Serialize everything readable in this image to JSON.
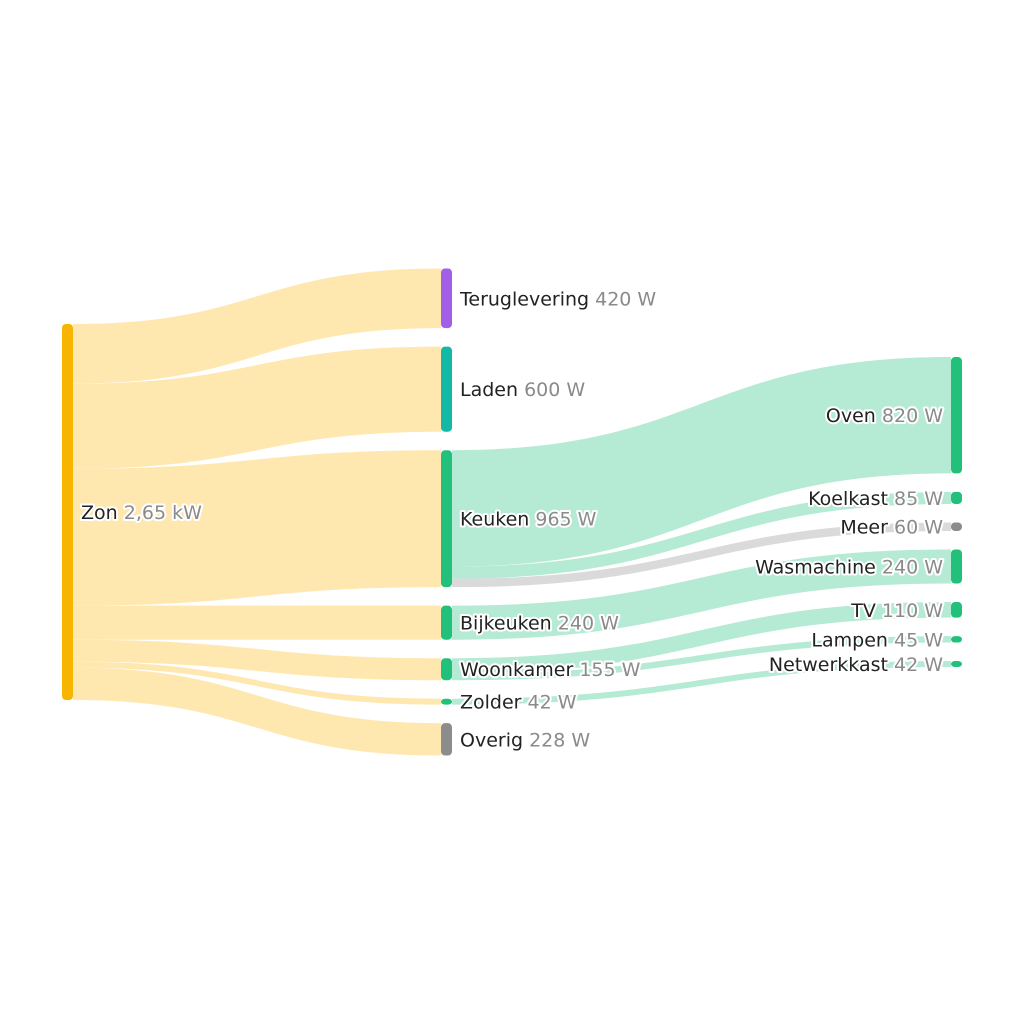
{
  "chart_data": {
    "type": "sankey",
    "nodes": [
      {
        "name": "Zon",
        "value": 2650,
        "value_label": "2,65 kW",
        "color": "#f7b500"
      },
      {
        "name": "Teruglevering",
        "value": 420,
        "value_label": "420 W",
        "color": "#a35ee8"
      },
      {
        "name": "Laden",
        "value": 600,
        "value_label": "600 W",
        "color": "#14b8a6"
      },
      {
        "name": "Keuken",
        "value": 965,
        "value_label": "965 W",
        "color": "#22c07a"
      },
      {
        "name": "Bijkeuken",
        "value": 240,
        "value_label": "240 W",
        "color": "#22c07a"
      },
      {
        "name": "Woonkamer",
        "value": 155,
        "value_label": "155 W",
        "color": "#22c07a"
      },
      {
        "name": "Zolder",
        "value": 42,
        "value_label": "42 W",
        "color": "#22c07a"
      },
      {
        "name": "Overig",
        "value": 228,
        "value_label": "228 W",
        "color": "#8c8c8c"
      },
      {
        "name": "Oven",
        "value": 820,
        "value_label": "820 W",
        "color": "#22c07a"
      },
      {
        "name": "Koelkast",
        "value": 85,
        "value_label": "85 W",
        "color": "#22c07a"
      },
      {
        "name": "Meer",
        "value": 60,
        "value_label": "60 W",
        "color": "#8c8c8c"
      },
      {
        "name": "Wasmachine",
        "value": 240,
        "value_label": "240 W",
        "color": "#22c07a"
      },
      {
        "name": "TV",
        "value": 110,
        "value_label": "110 W",
        "color": "#22c07a"
      },
      {
        "name": "Lampen",
        "value": 45,
        "value_label": "45 W",
        "color": "#22c07a"
      },
      {
        "name": "Netwerkkast",
        "value": 42,
        "value_label": "42 W",
        "color": "#22c07a"
      }
    ],
    "links": [
      {
        "source": 0,
        "target": 1,
        "value": 420,
        "color": "#ffe7b0"
      },
      {
        "source": 0,
        "target": 2,
        "value": 600,
        "color": "#ffe7b0"
      },
      {
        "source": 0,
        "target": 3,
        "value": 965,
        "color": "#ffe7b0"
      },
      {
        "source": 0,
        "target": 4,
        "value": 240,
        "color": "#ffe7b0"
      },
      {
        "source": 0,
        "target": 5,
        "value": 155,
        "color": "#ffe7b0"
      },
      {
        "source": 0,
        "target": 6,
        "value": 42,
        "color": "#ffe7b0"
      },
      {
        "source": 0,
        "target": 7,
        "value": 228,
        "color": "#ffe7b0"
      },
      {
        "source": 3,
        "target": 8,
        "value": 820,
        "color": "#b5ead4"
      },
      {
        "source": 3,
        "target": 9,
        "value": 85,
        "color": "#b5ead4"
      },
      {
        "source": 3,
        "target": 10,
        "value": 60,
        "color": "#dadada"
      },
      {
        "source": 4,
        "target": 11,
        "value": 240,
        "color": "#b5ead4"
      },
      {
        "source": 5,
        "target": 12,
        "value": 110,
        "color": "#b5ead4"
      },
      {
        "source": 5,
        "target": 13,
        "value": 45,
        "color": "#b5ead4"
      },
      {
        "source": 6,
        "target": 14,
        "value": 42,
        "color": "#b5ead4"
      }
    ]
  }
}
